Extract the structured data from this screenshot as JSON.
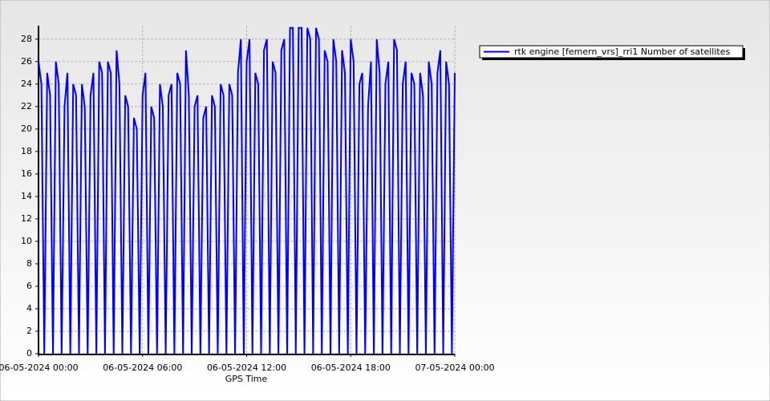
{
  "chart_data": {
    "type": "line",
    "x_label": "GPS Time",
    "categories": [
      "06-05-2024 00:00",
      null,
      null,
      null,
      null,
      null,
      null,
      null,
      null,
      null,
      null,
      null,
      null,
      null,
      null,
      null,
      null,
      null,
      null,
      null,
      null,
      null,
      null,
      null,
      null,
      null,
      null,
      null,
      null,
      null,
      null,
      null,
      null,
      null,
      null,
      null,
      "06-05-2024 06:00",
      null,
      null,
      null,
      null,
      null,
      null,
      null,
      null,
      null,
      null,
      null,
      null,
      null,
      null,
      null,
      null,
      null,
      null,
      null,
      null,
      null,
      null,
      null,
      null,
      null,
      null,
      null,
      null,
      null,
      null,
      null,
      null,
      null,
      null,
      null,
      "06-05-2024 12:00",
      null,
      null,
      null,
      null,
      null,
      null,
      null,
      null,
      null,
      null,
      null,
      null,
      null,
      null,
      null,
      null,
      null,
      null,
      null,
      null,
      null,
      null,
      null,
      null,
      null,
      null,
      null,
      null,
      null,
      null,
      null,
      null,
      null,
      null,
      null,
      "06-05-2024 18:00",
      null,
      null,
      null,
      null,
      null,
      null,
      null,
      null,
      null,
      null,
      null,
      null,
      null,
      null,
      null,
      null,
      null,
      null,
      null,
      null,
      null,
      null,
      null,
      null,
      null,
      null,
      null,
      null,
      null,
      null,
      null,
      null,
      null,
      null,
      null,
      "07-05-2024 00:00"
    ],
    "series": [
      {
        "name": "rtk engine [femern_vrs]_rri1 Number of satellites",
        "color": "#0000ff",
        "values": [
          26,
          24,
          0,
          25,
          23,
          0,
          26,
          24,
          0,
          22,
          25,
          0,
          24,
          23,
          0,
          24,
          22,
          0,
          23,
          25,
          0,
          26,
          25,
          0,
          26,
          25,
          0,
          27,
          24,
          0,
          23,
          22,
          0,
          21,
          20,
          0,
          23,
          25,
          0,
          22,
          21,
          0,
          24,
          22,
          0,
          23,
          24,
          0,
          25,
          24,
          0,
          27,
          23,
          0,
          22,
          23,
          0,
          21,
          22,
          0,
          23,
          22,
          0,
          24,
          23,
          0,
          24,
          23,
          0,
          25,
          28,
          0,
          26,
          28,
          0,
          25,
          24,
          0,
          27,
          28,
          0,
          26,
          25,
          0,
          27,
          28,
          0,
          29,
          29,
          0,
          29,
          29,
          0,
          29,
          28,
          0,
          29,
          28,
          0,
          27,
          26,
          0,
          28,
          26,
          0,
          27,
          25,
          0,
          28,
          26,
          0,
          24,
          25,
          0,
          22,
          26,
          0,
          28,
          25,
          0,
          24,
          26,
          0,
          28,
          27,
          0,
          24,
          26,
          0,
          25,
          24,
          0,
          25,
          23,
          0,
          26,
          24,
          0,
          25,
          27,
          0,
          26,
          24,
          0,
          25
        ]
      }
    ],
    "ylim": [
      0,
      29.2
    ],
    "yticks": [
      0,
      2,
      4,
      6,
      8,
      10,
      12,
      14,
      16,
      18,
      20,
      22,
      24,
      26,
      28
    ],
    "grid": true,
    "legend": "top-right"
  }
}
